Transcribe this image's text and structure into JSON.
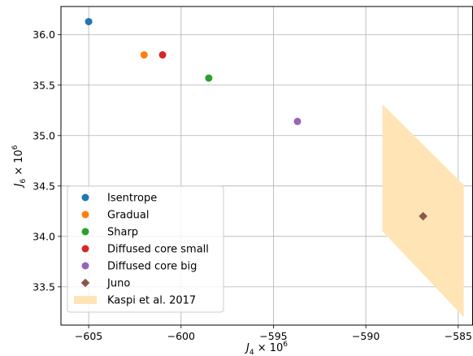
{
  "chart_data": {
    "type": "scatter",
    "xlabel": {
      "base": "J",
      "sub": "4",
      "times": " × 10",
      "sup": "6"
    },
    "ylabel": {
      "base": "J",
      "sub": "6",
      "times": " × 10",
      "sup": "6"
    },
    "xlim": [
      -606.5,
      -584.2
    ],
    "ylim": [
      33.12,
      36.28
    ],
    "xticks": [
      -605,
      -600,
      -595,
      -590,
      -585
    ],
    "xtick_labels": [
      "−605",
      "−600",
      "−595",
      "−590",
      "−585"
    ],
    "yticks": [
      33.5,
      34.0,
      34.5,
      35.0,
      35.5,
      36.0
    ],
    "ytick_labels": [
      "33.5",
      "34.0",
      "34.5",
      "35.0",
      "35.5",
      "36.0"
    ],
    "grid": true,
    "legend_position": "lower-left",
    "series": [
      {
        "name": "Isentrope",
        "marker": "circle",
        "color": "#1f77b4",
        "x": -605.0,
        "y": 36.13
      },
      {
        "name": "Gradual",
        "marker": "circle",
        "color": "#ff7f0e",
        "x": -602.0,
        "y": 35.8
      },
      {
        "name": "Sharp",
        "marker": "circle",
        "color": "#2ca02c",
        "x": -598.5,
        "y": 35.57
      },
      {
        "name": "Diffused core small",
        "marker": "circle",
        "color": "#d62728",
        "x": -601.0,
        "y": 35.8
      },
      {
        "name": "Diffused core big",
        "marker": "circle",
        "color": "#9467bd",
        "x": -593.7,
        "y": 35.14
      },
      {
        "name": "Juno",
        "marker": "diamond",
        "color": "#8c564b",
        "x": -586.9,
        "y": 34.2
      }
    ],
    "region": {
      "name": "Kaspi et al. 2017",
      "color": "#ffe4b5",
      "polygon": [
        [
          -589.1,
          35.31
        ],
        [
          -584.7,
          34.51
        ],
        [
          -584.7,
          33.2
        ],
        [
          -589.1,
          34.05
        ]
      ]
    }
  }
}
